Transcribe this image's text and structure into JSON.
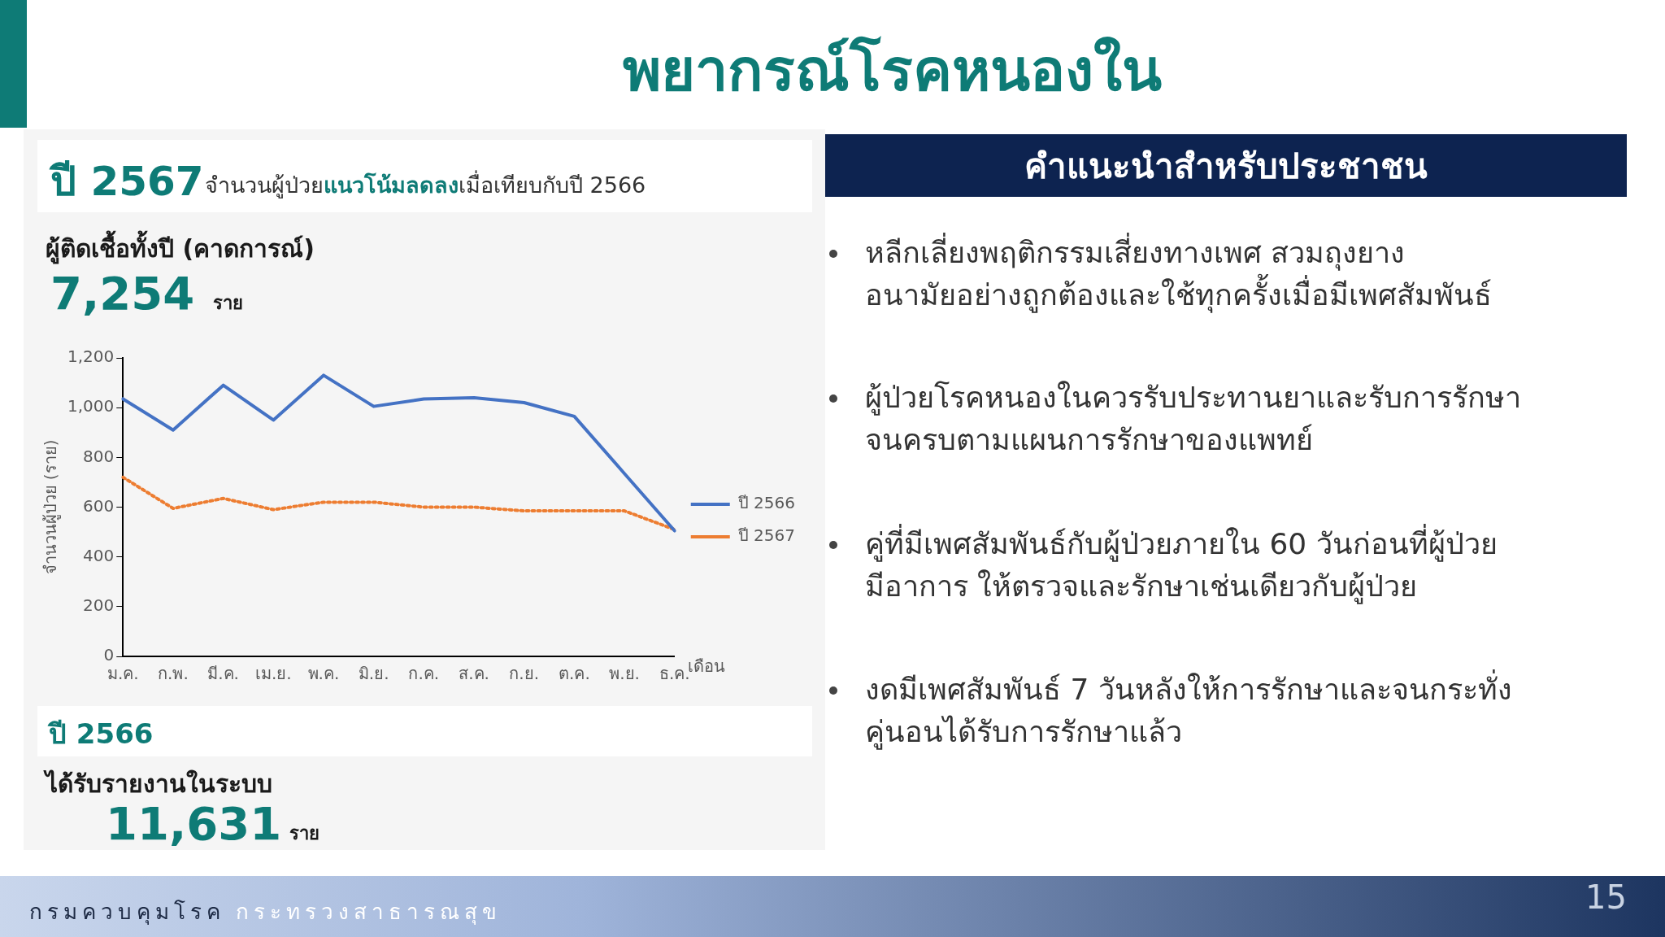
{
  "chart_data": {
    "type": "line",
    "title": "พยากรณ์โรคหนองใน",
    "xlabel": "เดือน",
    "ylabel": "จำนวนผู้ป่วย (ราย)",
    "categories": [
      "ม.ค.",
      "ก.พ.",
      "มี.ค.",
      "เม.ย.",
      "พ.ค.",
      "มิ.ย.",
      "ก.ค.",
      "ส.ค.",
      "ก.ย.",
      "ต.ค.",
      "พ.ย.",
      "ธ.ค."
    ],
    "series": [
      {
        "name": "ปี 2566",
        "color": "#4472c4",
        "line_style": "solid",
        "values": [
          1035,
          910,
          1090,
          950,
          1130,
          1005,
          1035,
          1040,
          1020,
          965,
          735,
          505
        ]
      },
      {
        "name": "ปี 2567",
        "color": "#ed7d31",
        "line_style": "dotted",
        "values": [
          720,
          595,
          635,
          590,
          620,
          620,
          600,
          600,
          585,
          585,
          585,
          510
        ]
      }
    ],
    "ylim": [
      0,
      1200
    ],
    "yticks": [
      0,
      200,
      400,
      600,
      800,
      {
        "value": 1000,
        "label": "1,000"
      },
      {
        "value": 1200,
        "label": "1,200"
      }
    ],
    "grid": false,
    "legend": "right",
    "marker": "none",
    "annotations": [
      "ปี 2567",
      "จำนวนผู้ป่วย",
      "แนวโน้มลดลง",
      "เมื่อเทียบกับปี 2566",
      "ผู้ติดเชื้อทั้งปี (คาดการณ์)",
      "7,254",
      "ราย",
      "ปี 2566",
      "ได้รับรายงานในระบบ",
      "11,631",
      "ราย",
      "คำแนะนำสำหรับประชาชน",
      "หลีกเลี่ยงพฤติกรรมเสี่ยงทางเพศ สวมถุงยาง\nอนามัยอย่างถูกต้องและใช้ทุกครั้งเมื่อมีเพศสัมพันธ์",
      "ผู้ป่วยโรคหนองในควรรับประทานยาและรับการรักษา\nจนครบตามแผนการรักษาของแพทย์",
      "คู่ที่มีเพศสัมพันธ์กับผู้ป่วยภายใน 60 วันก่อนที่ผู้ป่วย\nมีอาการ ให้ตรวจและรักษาเช่นเดียวกับผู้ป่วย",
      "งดมีเพศสัมพันธ์ 7 วันหลังให้การรักษาและจนกระทั่ง\nคู่นอนได้รับการรักษาแล้ว",
      "กรมควบคุมโรค",
      "กระทรวงสาธารณสุข",
      "15"
    ]
  }
}
